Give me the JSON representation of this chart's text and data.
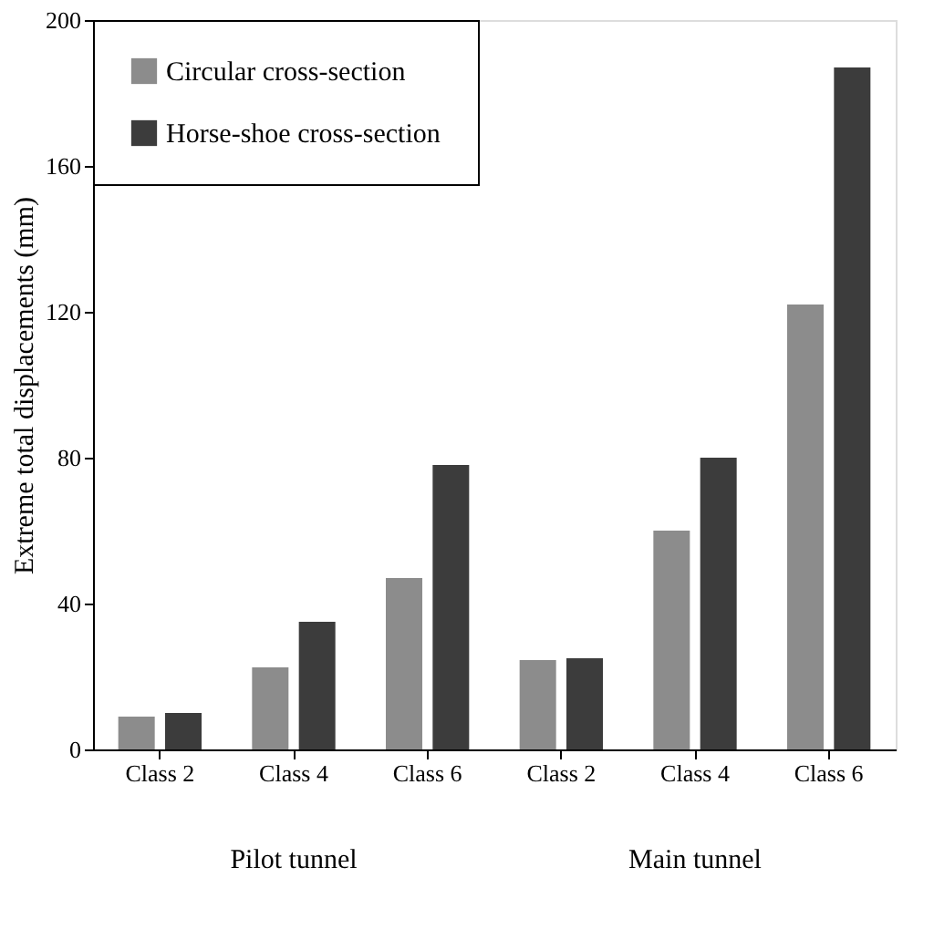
{
  "chart_data": {
    "type": "bar",
    "ylabel": "Extreme total displacements (mm)",
    "categories": [
      "Class 2",
      "Class 4",
      "Class 6",
      "Class 2",
      "Class 4",
      "Class 6"
    ],
    "series": [
      {
        "name": "Circular cross-section",
        "color": "#8c8c8c",
        "values": [
          9,
          22.5,
          47,
          24.5,
          60,
          122
        ]
      },
      {
        "name": "Horse-shoe cross-section",
        "color": "#3c3c3c",
        "values": [
          10,
          35,
          78,
          25,
          80,
          187
        ]
      }
    ],
    "ylim": [
      0,
      200
    ],
    "yticks": [
      0,
      40,
      80,
      120,
      160,
      200
    ],
    "grid": false,
    "legend": "top left",
    "annotations": [
      "Pilot tunnel",
      "Main tunnel"
    ]
  }
}
